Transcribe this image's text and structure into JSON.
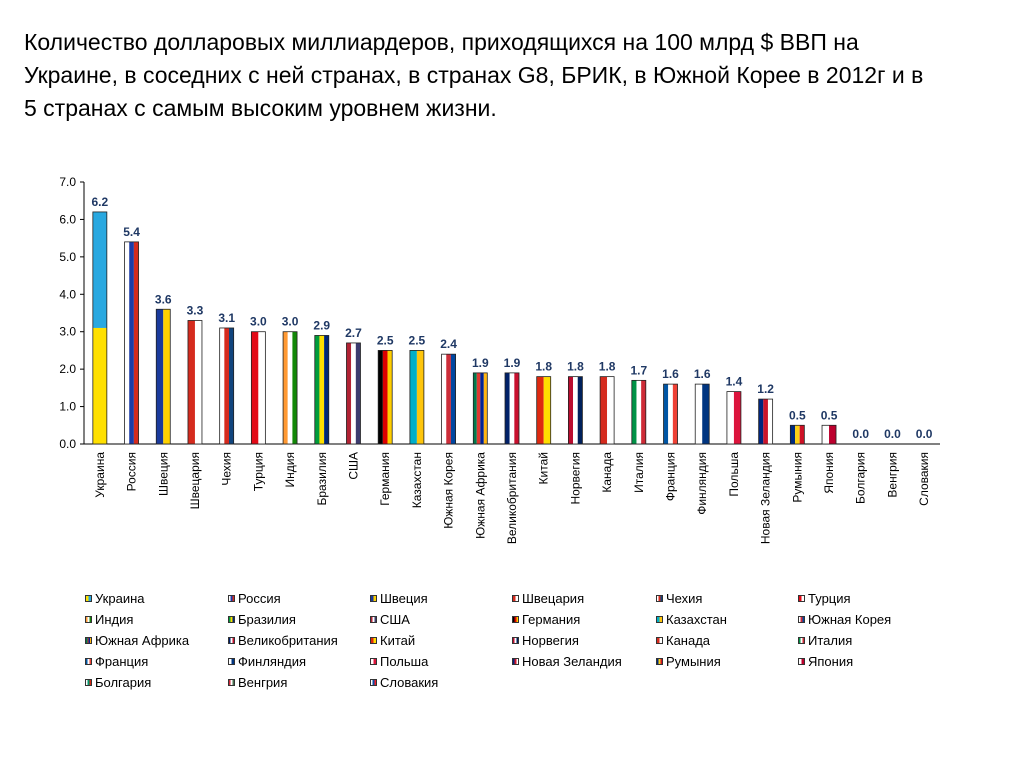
{
  "title": "Количество долларовых миллиардеров, приходящихся на 100 млрд $ ВВП на Украине, в соседних с ней странах, в странах G8, БРИК, в Южной Корее в 2012г и в 5 странах с самым высоким уровнем жизни.",
  "chart_data": {
    "type": "bar",
    "categories": [
      "Украина",
      "Россия",
      "Швеция",
      "Швецария",
      "Чехия",
      "Турция",
      "Индия",
      "Бразилия",
      "США",
      "Германия",
      "Казахстан",
      "Южная Корея",
      "Южная Африка",
      "Великобритания",
      "Китай",
      "Норвегия",
      "Канада",
      "Италия",
      "Франция",
      "Финляндия",
      "Польша",
      "Новая Зеландия",
      "Румыния",
      "Япония",
      "Болгария",
      "Венгрия",
      "Словакия"
    ],
    "values": [
      6.2,
      5.4,
      3.6,
      3.3,
      3.1,
      3.0,
      3.0,
      2.9,
      2.7,
      2.5,
      2.5,
      2.4,
      1.9,
      1.9,
      1.8,
      1.8,
      1.8,
      1.7,
      1.6,
      1.6,
      1.4,
      1.2,
      0.5,
      0.5,
      0.0,
      0.0,
      0.0
    ],
    "value_labels": [
      "6.2",
      "5.4",
      "3.6",
      "3.3",
      "3.1",
      "3.0",
      "3.0",
      "2.9",
      "2.7",
      "2.5",
      "2.5",
      "2.4",
      "1.9",
      "1.9",
      "1.8",
      "1.8",
      "1.8",
      "1.7",
      "1.6",
      "1.6",
      "1.4",
      "1.2",
      "0.5",
      "0.5",
      "0.0",
      "0.0",
      "0.0"
    ],
    "yticks": [
      "0.0",
      "1.0",
      "2.0",
      "3.0",
      "4.0",
      "5.0",
      "6.0",
      "7.0"
    ],
    "ylim": [
      0,
      7
    ],
    "legend_position": "bottom",
    "label_color": "#1f3864",
    "flag_colors": [
      [
        "#ffe000",
        "#29a8e0"
      ],
      [
        "#ffffff",
        "#1c3ca8",
        "#d52b1e"
      ],
      [
        "#1a3a9c",
        "#ffd200"
      ],
      [
        "#d52b1e",
        "#ffffff"
      ],
      [
        "#ffffff",
        "#d52b1e",
        "#11457e"
      ],
      [
        "#e30a17",
        "#ffffff"
      ],
      [
        "#ff9933",
        "#ffffff",
        "#138808"
      ],
      [
        "#009c3b",
        "#ffdf00",
        "#002776"
      ],
      [
        "#b22234",
        "#ffffff",
        "#3c3b6e"
      ],
      [
        "#000000",
        "#dd0000",
        "#ffce00"
      ],
      [
        "#00afca",
        "#fec50c"
      ],
      [
        "#ffffff",
        "#cd2e3a",
        "#0047a0"
      ],
      [
        "#007a4d",
        "#de3831",
        "#002395",
        "#ffb612"
      ],
      [
        "#012169",
        "#ffffff",
        "#c8102e"
      ],
      [
        "#de2910",
        "#ffde00"
      ],
      [
        "#ba0c2f",
        "#ffffff",
        "#00205b"
      ],
      [
        "#d52b1e",
        "#ffffff"
      ],
      [
        "#009246",
        "#ffffff",
        "#ce2b37"
      ],
      [
        "#0055a4",
        "#ffffff",
        "#ef4135"
      ],
      [
        "#ffffff",
        "#003580"
      ],
      [
        "#ffffff",
        "#dc143c"
      ],
      [
        "#00247d",
        "#cc142b",
        "#ffffff"
      ],
      [
        "#002b7f",
        "#fcd116",
        "#ce1126"
      ],
      [
        "#ffffff",
        "#bc002d"
      ],
      [
        "#ffffff",
        "#00966e",
        "#d62612"
      ],
      [
        "#ce2939",
        "#ffffff",
        "#477050"
      ],
      [
        "#ffffff",
        "#0b4ea2",
        "#ee1c25"
      ]
    ]
  }
}
